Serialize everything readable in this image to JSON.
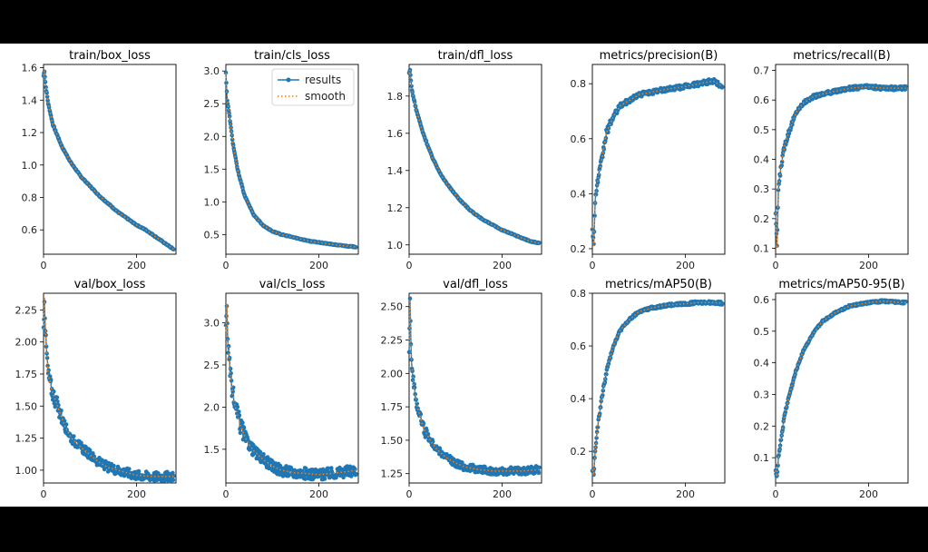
{
  "figure": {
    "legend": {
      "results_label": "results",
      "smooth_label": "smooth"
    },
    "colors": {
      "results": "#1f77b4",
      "smooth": "#ff7f0e",
      "background": "#ffffff",
      "frame": "#000000"
    }
  },
  "chart_data": [
    {
      "type": "line",
      "title": "train/box_loss",
      "xlim": [
        0,
        285
      ],
      "ylim": [
        0.45,
        1.62
      ],
      "xticks": [
        0,
        200
      ],
      "yticks": [
        0.6,
        0.8,
        1.0,
        1.2,
        1.4,
        1.6
      ],
      "series": [
        {
          "name": "results",
          "anchors": [
            [
              0,
              1.55
            ],
            [
              2,
              1.58
            ],
            [
              5,
              1.48
            ],
            [
              10,
              1.38
            ],
            [
              20,
              1.25
            ],
            [
              40,
              1.11
            ],
            [
              60,
              1.01
            ],
            [
              80,
              0.93
            ],
            [
              100,
              0.87
            ],
            [
              120,
              0.81
            ],
            [
              140,
              0.76
            ],
            [
              160,
              0.71
            ],
            [
              180,
              0.67
            ],
            [
              200,
              0.63
            ],
            [
              220,
              0.6
            ],
            [
              240,
              0.56
            ],
            [
              260,
              0.52
            ],
            [
              280,
              0.48
            ]
          ],
          "noise": 0.006
        }
      ]
    },
    {
      "type": "line",
      "title": "train/cls_loss",
      "xlim": [
        0,
        285
      ],
      "ylim": [
        0.2,
        3.1
      ],
      "xticks": [
        0,
        200
      ],
      "yticks": [
        0.5,
        1.0,
        1.5,
        2.0,
        2.5,
        3.0
      ],
      "legend": "top-right",
      "series": [
        {
          "name": "results",
          "anchors": [
            [
              0,
              2.97
            ],
            [
              3,
              2.55
            ],
            [
              8,
              2.3
            ],
            [
              15,
              1.9
            ],
            [
              25,
              1.5
            ],
            [
              40,
              1.1
            ],
            [
              60,
              0.8
            ],
            [
              80,
              0.64
            ],
            [
              100,
              0.55
            ],
            [
              120,
              0.5
            ],
            [
              150,
              0.45
            ],
            [
              180,
              0.4
            ],
            [
              200,
              0.38
            ],
            [
              240,
              0.34
            ],
            [
              280,
              0.31
            ]
          ],
          "noise": 0.005
        }
      ]
    },
    {
      "type": "line",
      "title": "train/dfl_loss",
      "xlim": [
        0,
        285
      ],
      "ylim": [
        0.95,
        1.97
      ],
      "xticks": [
        0,
        200
      ],
      "yticks": [
        1.0,
        1.2,
        1.4,
        1.6,
        1.8
      ],
      "series": [
        {
          "name": "results",
          "anchors": [
            [
              0,
              1.92
            ],
            [
              2,
              1.94
            ],
            [
              6,
              1.83
            ],
            [
              15,
              1.73
            ],
            [
              30,
              1.6
            ],
            [
              50,
              1.47
            ],
            [
              70,
              1.37
            ],
            [
              90,
              1.3
            ],
            [
              110,
              1.24
            ],
            [
              130,
              1.19
            ],
            [
              150,
              1.15
            ],
            [
              170,
              1.12
            ],
            [
              200,
              1.08
            ],
            [
              220,
              1.06
            ],
            [
              240,
              1.04
            ],
            [
              260,
              1.02
            ],
            [
              280,
              1.01
            ]
          ],
          "noise": 0.006
        }
      ]
    },
    {
      "type": "line",
      "title": "metrics/precision(B)",
      "xlim": [
        0,
        285
      ],
      "ylim": [
        0.18,
        0.87
      ],
      "xticks": [
        0,
        200
      ],
      "yticks": [
        0.2,
        0.4,
        0.6,
        0.8
      ],
      "series": [
        {
          "name": "results",
          "anchors": [
            [
              0,
              0.28
            ],
            [
              3,
              0.21
            ],
            [
              6,
              0.38
            ],
            [
              12,
              0.45
            ],
            [
              20,
              0.52
            ],
            [
              30,
              0.62
            ],
            [
              45,
              0.68
            ],
            [
              60,
              0.72
            ],
            [
              80,
              0.74
            ],
            [
              100,
              0.76
            ],
            [
              130,
              0.77
            ],
            [
              160,
              0.78
            ],
            [
              200,
              0.79
            ],
            [
              230,
              0.8
            ],
            [
              260,
              0.81
            ],
            [
              280,
              0.79
            ]
          ],
          "noise": 0.025
        }
      ]
    },
    {
      "type": "line",
      "title": "metrics/recall(B)",
      "xlim": [
        0,
        285
      ],
      "ylim": [
        0.08,
        0.72
      ],
      "xticks": [
        0,
        200
      ],
      "yticks": [
        0.1,
        0.2,
        0.3,
        0.4,
        0.5,
        0.6,
        0.7
      ],
      "series": [
        {
          "name": "results",
          "anchors": [
            [
              0,
              0.22
            ],
            [
              3,
              0.1
            ],
            [
              6,
              0.3
            ],
            [
              12,
              0.38
            ],
            [
              20,
              0.45
            ],
            [
              30,
              0.5
            ],
            [
              45,
              0.56
            ],
            [
              60,
              0.59
            ],
            [
              80,
              0.61
            ],
            [
              100,
              0.62
            ],
            [
              130,
              0.63
            ],
            [
              160,
              0.64
            ],
            [
              200,
              0.645
            ],
            [
              230,
              0.64
            ],
            [
              260,
              0.64
            ],
            [
              280,
              0.64
            ]
          ],
          "noise": 0.02
        }
      ]
    },
    {
      "type": "line",
      "title": "val/box_loss",
      "xlim": [
        0,
        285
      ],
      "ylim": [
        0.9,
        2.38
      ],
      "xticks": [
        0,
        200
      ],
      "yticks": [
        1.0,
        1.25,
        1.5,
        1.75,
        2.0,
        2.25
      ],
      "series": [
        {
          "name": "results",
          "anchors": [
            [
              0,
              2.1
            ],
            [
              2,
              2.35
            ],
            [
              5,
              2.0
            ],
            [
              10,
              1.75
            ],
            [
              18,
              1.62
            ],
            [
              30,
              1.5
            ],
            [
              45,
              1.35
            ],
            [
              60,
              1.25
            ],
            [
              80,
              1.18
            ],
            [
              100,
              1.12
            ],
            [
              120,
              1.06
            ],
            [
              140,
              1.02
            ],
            [
              160,
              1.0
            ],
            [
              180,
              0.98
            ],
            [
              200,
              0.96
            ],
            [
              240,
              0.95
            ],
            [
              280,
              0.95
            ]
          ],
          "noise": 0.05
        }
      ]
    },
    {
      "type": "line",
      "title": "val/cls_loss",
      "xlim": [
        0,
        285
      ],
      "ylim": [
        1.1,
        3.35
      ],
      "xticks": [
        0,
        200
      ],
      "yticks": [
        1.5,
        2.0,
        2.5,
        3.0
      ],
      "series": [
        {
          "name": "results",
          "anchors": [
            [
              0,
              2.9
            ],
            [
              2,
              3.22
            ],
            [
              5,
              2.7
            ],
            [
              10,
              2.35
            ],
            [
              18,
              2.05
            ],
            [
              30,
              1.8
            ],
            [
              45,
              1.6
            ],
            [
              60,
              1.48
            ],
            [
              80,
              1.38
            ],
            [
              100,
              1.3
            ],
            [
              120,
              1.25
            ],
            [
              150,
              1.22
            ],
            [
              180,
              1.21
            ],
            [
              200,
              1.2
            ],
            [
              240,
              1.22
            ],
            [
              280,
              1.25
            ]
          ],
          "noise": 0.06
        }
      ]
    },
    {
      "type": "line",
      "title": "val/dfl_loss",
      "xlim": [
        0,
        285
      ],
      "ylim": [
        1.18,
        2.6
      ],
      "xticks": [
        0,
        200
      ],
      "yticks": [
        1.25,
        1.5,
        1.75,
        2.0,
        2.25,
        2.5
      ],
      "series": [
        {
          "name": "results",
          "anchors": [
            [
              0,
              2.2
            ],
            [
              2,
              2.55
            ],
            [
              5,
              2.1
            ],
            [
              10,
              1.9
            ],
            [
              18,
              1.75
            ],
            [
              30,
              1.6
            ],
            [
              45,
              1.5
            ],
            [
              60,
              1.43
            ],
            [
              80,
              1.37
            ],
            [
              100,
              1.33
            ],
            [
              120,
              1.3
            ],
            [
              150,
              1.28
            ],
            [
              180,
              1.27
            ],
            [
              200,
              1.27
            ],
            [
              240,
              1.27
            ],
            [
              280,
              1.28
            ]
          ],
          "noise": 0.04
        }
      ]
    },
    {
      "type": "line",
      "title": "metrics/mAP50(B)",
      "xlim": [
        0,
        285
      ],
      "ylim": [
        0.08,
        0.8
      ],
      "xticks": [
        0,
        200
      ],
      "yticks": [
        0.2,
        0.4,
        0.6,
        0.8
      ],
      "series": [
        {
          "name": "results",
          "anchors": [
            [
              0,
              0.13
            ],
            [
              3,
              0.11
            ],
            [
              6,
              0.2
            ],
            [
              12,
              0.3
            ],
            [
              20,
              0.4
            ],
            [
              30,
              0.5
            ],
            [
              45,
              0.6
            ],
            [
              60,
              0.66
            ],
            [
              80,
              0.7
            ],
            [
              100,
              0.73
            ],
            [
              130,
              0.745
            ],
            [
              160,
              0.755
            ],
            [
              200,
              0.76
            ],
            [
              230,
              0.765
            ],
            [
              260,
              0.765
            ],
            [
              280,
              0.762
            ]
          ],
          "noise": 0.015
        }
      ]
    },
    {
      "type": "line",
      "title": "metrics/mAP50-95(B)",
      "xlim": [
        0,
        285
      ],
      "ylim": [
        0.02,
        0.62
      ],
      "xticks": [
        0,
        200
      ],
      "yticks": [
        0.1,
        0.2,
        0.3,
        0.4,
        0.5,
        0.6
      ],
      "series": [
        {
          "name": "results",
          "anchors": [
            [
              0,
              0.06
            ],
            [
              3,
              0.04
            ],
            [
              6,
              0.1
            ],
            [
              12,
              0.16
            ],
            [
              20,
              0.24
            ],
            [
              30,
              0.3
            ],
            [
              45,
              0.38
            ],
            [
              60,
              0.44
            ],
            [
              80,
              0.49
            ],
            [
              100,
              0.53
            ],
            [
              130,
              0.56
            ],
            [
              160,
              0.58
            ],
            [
              200,
              0.59
            ],
            [
              230,
              0.595
            ],
            [
              260,
              0.592
            ],
            [
              280,
              0.59
            ]
          ],
          "noise": 0.012
        }
      ]
    }
  ]
}
